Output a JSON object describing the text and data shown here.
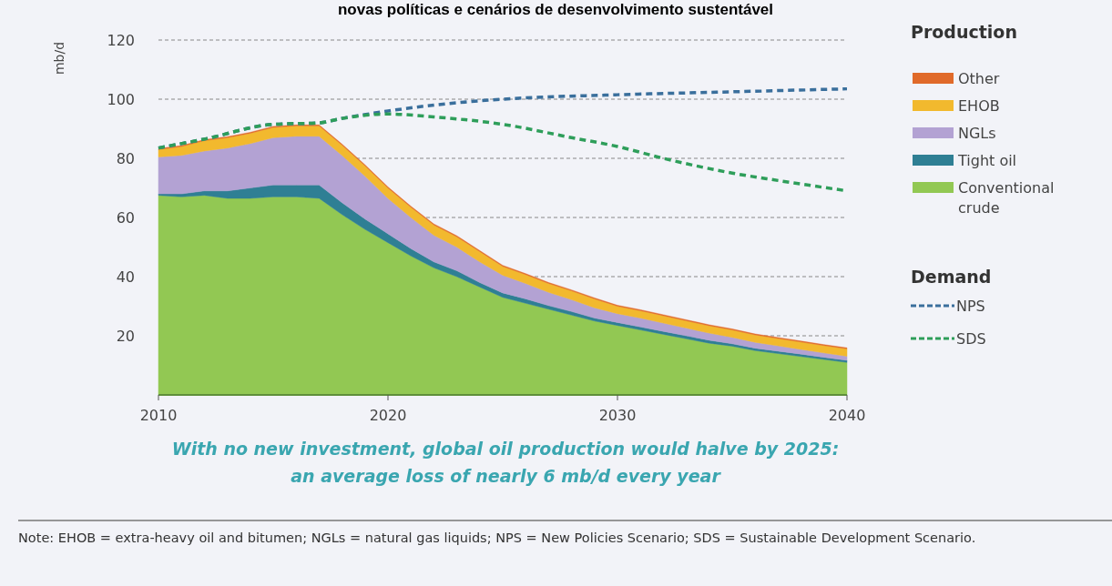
{
  "chart_data": {
    "type": "area",
    "stacked": true,
    "title": "novas políticas e cenários de desenvolvimento sustentável",
    "ylabel": "mb/d",
    "legend_title": "Production",
    "legend": "right",
    "grid": "y",
    "line_style": "dashed",
    "xlim": [
      2010,
      2040
    ],
    "xticks": [
      2010,
      2020,
      2030,
      2040
    ],
    "ylim": [
      0,
      120
    ],
    "yticks": [
      {
        "value": 0,
        "label": null
      },
      20,
      40,
      60,
      80,
      100,
      120
    ],
    "x": [
      2010,
      2011,
      2012,
      2013,
      2014,
      2015,
      2016,
      2017,
      2018,
      2019,
      2020,
      2021,
      2022,
      2023,
      2024,
      2025,
      2026,
      2027,
      2028,
      2029,
      2030,
      2031,
      2032,
      2033,
      2034,
      2035,
      2036,
      2037,
      2038,
      2039,
      2040
    ],
    "series": [
      {
        "name": "Conventional crude",
        "color": "#92c853",
        "values": [
          67.5,
          67,
          67.5,
          66.5,
          66.5,
          67,
          67,
          66.5,
          61,
          56,
          51.5,
          47,
          43,
          40,
          36.5,
          33,
          31,
          29,
          27,
          25,
          23.5,
          22,
          20.5,
          19,
          17.5,
          16.5,
          15,
          14,
          13,
          12,
          11
        ]
      },
      {
        "name": "Tight oil",
        "color": "#2f7f94",
        "values": [
          0.5,
          1,
          1.5,
          2.5,
          3.5,
          4,
          4,
          4.5,
          4,
          3.5,
          3,
          2.5,
          2,
          2,
          1.5,
          1.5,
          1.5,
          1.2,
          1.2,
          1,
          1,
          1,
          1,
          1,
          1,
          0.8,
          0.8,
          0.8,
          0.8,
          0.7,
          0.7
        ]
      },
      {
        "name": "NGLs",
        "color": "#b3a2d3",
        "values": [
          12.5,
          13,
          13.5,
          14.5,
          15,
          16,
          16.5,
          16.5,
          16,
          14.5,
          12,
          10.5,
          9,
          8,
          7,
          6,
          5.2,
          4.5,
          4,
          3.5,
          3,
          3,
          2.8,
          2.6,
          2.4,
          2.2,
          2,
          1.8,
          1.6,
          1.5,
          1.4
        ]
      },
      {
        "name": "EHOB",
        "color": "#f2b92e",
        "values": [
          2.5,
          3,
          3.5,
          3.5,
          3.5,
          3.5,
          3.5,
          3.5,
          3.5,
          3.5,
          3.5,
          3.5,
          3.5,
          3.5,
          3.5,
          3,
          3,
          3,
          3,
          3,
          2.5,
          2.5,
          2.5,
          2.5,
          2.5,
          2.5,
          2.5,
          2.5,
          2.5,
          2.5,
          2.5
        ]
      },
      {
        "name": "Other",
        "color": "#e06a2a",
        "values": [
          0.3,
          0.3,
          0.3,
          0.3,
          0.3,
          0.3,
          0.3,
          0.3,
          0.3,
          0.3,
          0.3,
          0.3,
          0.3,
          0.3,
          0.3,
          0.3,
          0.3,
          0.3,
          0.3,
          0.3,
          0.3,
          0.3,
          0.3,
          0.3,
          0.3,
          0.3,
          0.3,
          0.3,
          0.3,
          0.3,
          0.3
        ]
      },
      {
        "name": "NPS",
        "type": "line",
        "color": "#3a6f9c",
        "x": [
          2010,
          2012,
          2015,
          2017,
          2018,
          2020,
          2022,
          2025,
          2030,
          2035,
          2040
        ],
        "values": [
          83.5,
          86.5,
          91.5,
          92,
          93.5,
          96,
          98,
          100,
          101.5,
          102.5,
          103.5
        ]
      },
      {
        "name": "SDS",
        "type": "line",
        "color": "#2e9e5a",
        "x": [
          2010,
          2012,
          2015,
          2017,
          2018,
          2020,
          2022,
          2025,
          2028,
          2030,
          2032,
          2035,
          2037,
          2040
        ],
        "values": [
          83.5,
          86.5,
          91.5,
          92,
          93.5,
          95,
          94,
          91.5,
          87,
          84,
          80,
          75,
          72.5,
          69
        ]
      }
    ],
    "annotations": [
      "Demand",
      "With no new investment, global oil production would halve by 2025:",
      "an average loss of nearly 6 mb/d every year",
      "Note: EHOB = extra-heavy oil and bitumen; NGLs = natural gas liquids; NPS = New Policies Scenario; SDS = Sustainable Development Scenario."
    ]
  }
}
